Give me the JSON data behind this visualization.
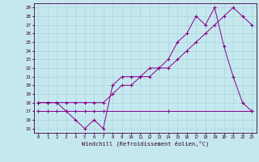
{
  "background_color": "#c5e8ef",
  "grid_color": "#aad4dc",
  "line_color": "#880088",
  "xlim": [
    -0.5,
    23.5
  ],
  "ylim": [
    14.5,
    29.5
  ],
  "yticks": [
    15,
    16,
    17,
    18,
    19,
    20,
    21,
    22,
    23,
    24,
    25,
    26,
    27,
    28,
    29
  ],
  "xticks": [
    0,
    1,
    2,
    3,
    4,
    5,
    6,
    7,
    8,
    9,
    10,
    11,
    12,
    13,
    14,
    15,
    16,
    17,
    18,
    19,
    20,
    21,
    22,
    23
  ],
  "xlabel": "Windchill (Refroidissement éolien,°C)",
  "line1_x": [
    0,
    1,
    2,
    3,
    4,
    5,
    6,
    7,
    8,
    9,
    10,
    11,
    12,
    13,
    14,
    15,
    16,
    17,
    18,
    19,
    20,
    21,
    22,
    23
  ],
  "line1_y": [
    18,
    18,
    18,
    17,
    16,
    15,
    16,
    15,
    20,
    21,
    21,
    21,
    22,
    22,
    23,
    25,
    26,
    28,
    27,
    29,
    24.5,
    21,
    18,
    17
  ],
  "line2_x": [
    0,
    1,
    2,
    3,
    4,
    5,
    6,
    7,
    14,
    23
  ],
  "line2_y": [
    17,
    17,
    17,
    17,
    17,
    17,
    17,
    17,
    17,
    17
  ],
  "line3_x": [
    0,
    1,
    2,
    3,
    4,
    5,
    6,
    7,
    8,
    9,
    10,
    11,
    12,
    13,
    14,
    15,
    16,
    17,
    18,
    19,
    20,
    21,
    22,
    23
  ],
  "line3_y": [
    18,
    18,
    18,
    18,
    18,
    18,
    18,
    18,
    19,
    20,
    20,
    21,
    21,
    22,
    22,
    23,
    24,
    25,
    26,
    27,
    28,
    29,
    28,
    27
  ]
}
